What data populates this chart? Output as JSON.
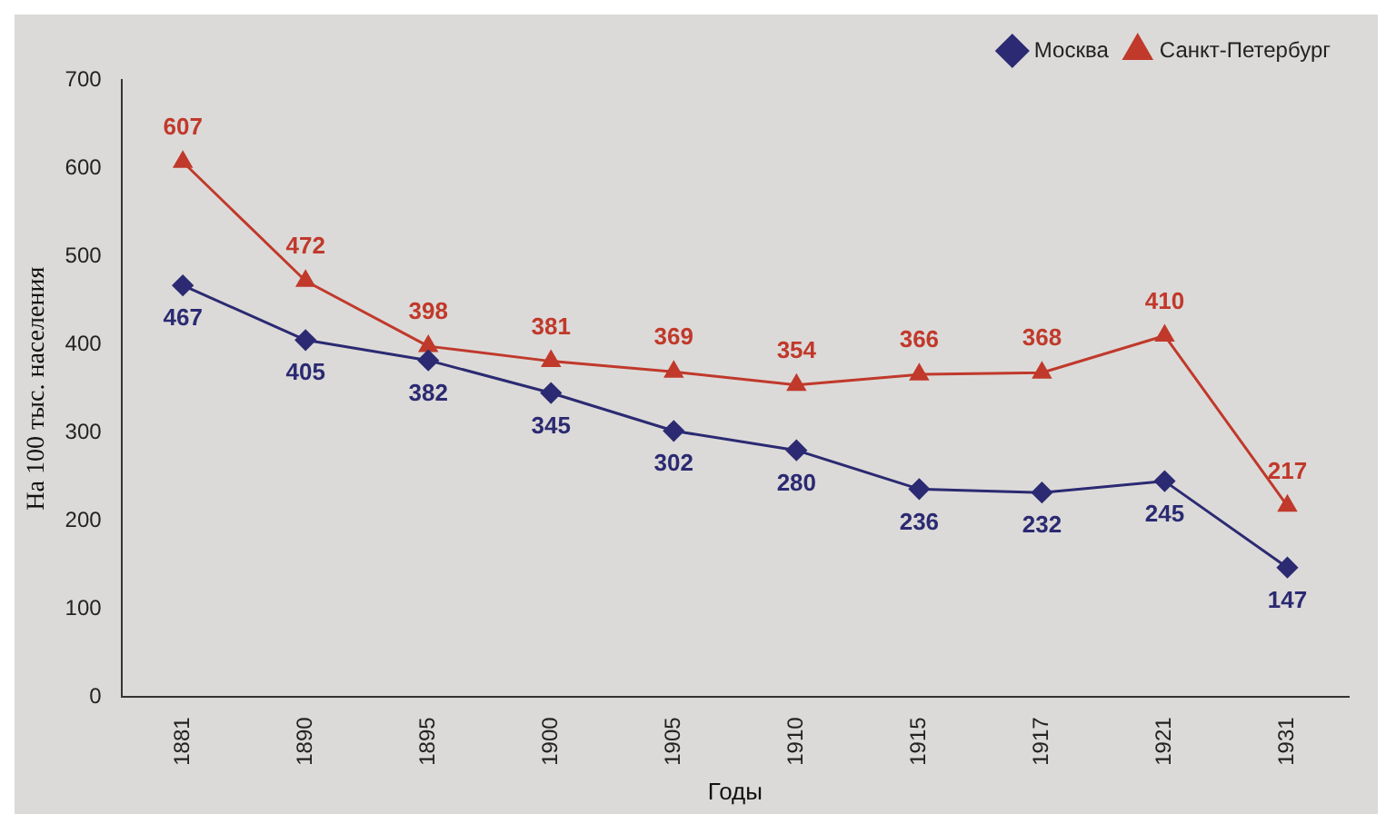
{
  "chart_data": {
    "type": "line",
    "xlabel": "Годы",
    "ylabel": "На 100 тыс. населения",
    "categories": [
      "1881",
      "1890",
      "1895",
      "1900",
      "1905",
      "1910",
      "1915",
      "1917",
      "1921",
      "1931"
    ],
    "series": [
      {
        "name": "Москва",
        "color": "#2b2a72",
        "marker": "diamond",
        "values": [
          467,
          405,
          382,
          345,
          302,
          280,
          236,
          232,
          245,
          147
        ]
      },
      {
        "name": "Санкт-Петербург",
        "color": "#c0392b",
        "marker": "triangle",
        "values": [
          607,
          472,
          398,
          381,
          369,
          354,
          366,
          368,
          410,
          217
        ]
      }
    ],
    "ylim": [
      0,
      700
    ],
    "yticks": [
      0,
      100,
      200,
      300,
      400,
      500,
      600,
      700
    ],
    "grid": false,
    "legend": "top right",
    "data_labels": true
  }
}
